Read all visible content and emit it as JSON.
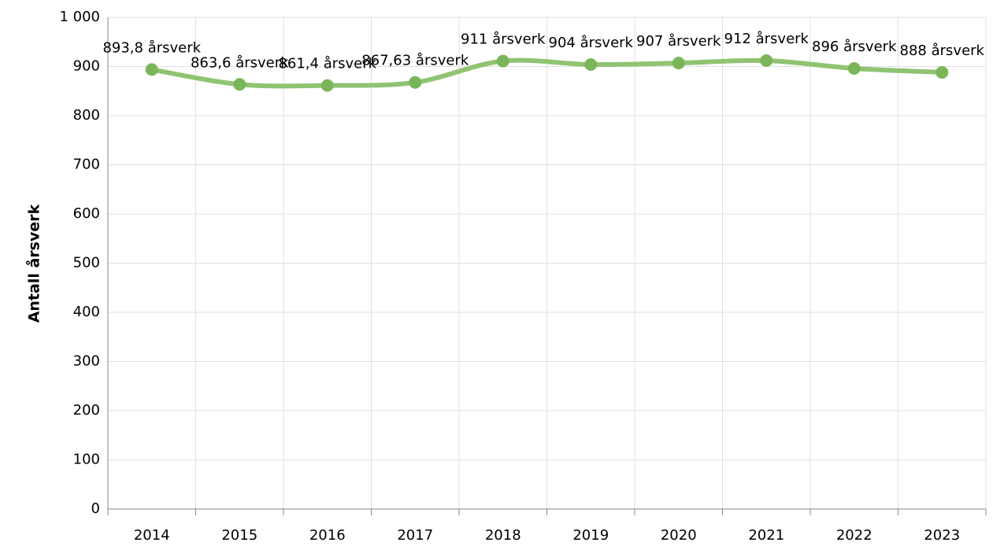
{
  "chart_data": {
    "type": "line",
    "y_label": "Antall årsverk",
    "categories": [
      "2014",
      "2015",
      "2016",
      "2017",
      "2018",
      "2019",
      "2020",
      "2021",
      "2022",
      "2023"
    ],
    "series": [
      {
        "color": "#8fc472",
        "marker_color": "#7ab659",
        "values": [
          893.8,
          863.6,
          861.4,
          867.63,
          911,
          904,
          907,
          912,
          896,
          888
        ],
        "value_labels": [
          "893,8 årsverk",
          "863,6 årsverk",
          "861,4 årsverk",
          "867,63 årsverk",
          "911 årsverk",
          "904 årsverk",
          "907 årsverk",
          "912 årsverk",
          "896 årsverk",
          "888 årsverk"
        ]
      }
    ],
    "ylim": [
      0,
      1000
    ],
    "yticks": [
      0,
      100,
      200,
      300,
      400,
      500,
      600,
      700,
      800,
      900,
      {
        "value": 1000,
        "label": "1 000"
      }
    ],
    "grid": true,
    "smooth": true
  }
}
